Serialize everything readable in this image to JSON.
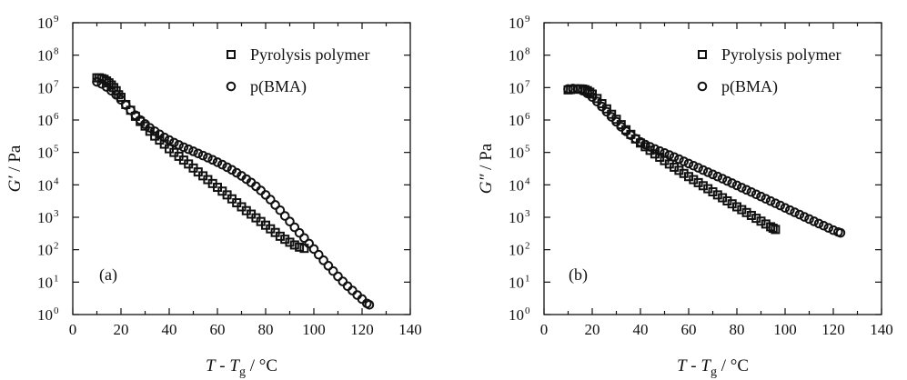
{
  "chart_data": [
    {
      "type": "scatter",
      "panel_label": "(a)",
      "xlabel": {
        "main": "T",
        "sep": " - ",
        "base": "T",
        "sub": "g",
        "unit": " / °C"
      },
      "ylabel": {
        "main": "G′",
        "unit": " / Pa"
      },
      "xlim": [
        0,
        140
      ],
      "ylim_exponent": [
        0,
        9
      ],
      "y_scale": "log",
      "x_ticks": [
        "0",
        "20",
        "40",
        "60",
        "80",
        "100",
        "120",
        "140"
      ],
      "y_tick_base": "10",
      "y_tick_exponents": [
        "0",
        "1",
        "2",
        "3",
        "4",
        "5",
        "6",
        "7",
        "8",
        "9"
      ],
      "legend_position": "top-right",
      "series": [
        {
          "name": "Pyrolysis polymer",
          "marker": "square",
          "x": [
            10,
            11,
            12,
            13,
            14,
            15,
            16,
            17,
            18,
            19,
            20,
            22,
            24,
            26,
            28,
            30,
            32,
            34,
            36,
            38,
            40,
            42,
            44,
            46,
            48,
            50,
            52,
            54,
            56,
            58,
            60,
            62,
            64,
            66,
            68,
            70,
            72,
            74,
            76,
            78,
            80,
            82,
            84,
            86,
            88,
            90,
            92,
            94,
            96
          ],
          "y": [
            20000000.0,
            20000000.0,
            19000000.0,
            18000000.0,
            16000000.0,
            14000000.0,
            12000000.0,
            10000000.0,
            8000000.0,
            6000000.0,
            5000000.0,
            3000000.0,
            2000000.0,
            1300000.0,
            900000.0,
            650000.0,
            450000.0,
            320000.0,
            240000.0,
            180000.0,
            130000.0,
            100000.0,
            76000.0,
            58000.0,
            44000.0,
            33000.0,
            25000.0,
            19000.0,
            14500.0,
            11000.0,
            8400.0,
            6400.0,
            4900.0,
            3700.0,
            2800.0,
            2100.0,
            1600.0,
            1250.0,
            960.0,
            740.0,
            570.0,
            440.0,
            340.0,
            260.0,
            210.0,
            170.0,
            140.0,
            120.0,
            110.0
          ]
        },
        {
          "name": "p(BMA)",
          "marker": "circle",
          "x": [
            10,
            12,
            14,
            16,
            18,
            20,
            22,
            24,
            26,
            28,
            30,
            32,
            34,
            36,
            38,
            40,
            42,
            44,
            46,
            48,
            50,
            52,
            54,
            56,
            58,
            60,
            62,
            64,
            66,
            68,
            70,
            72,
            74,
            76,
            78,
            80,
            82,
            84,
            86,
            88,
            90,
            92,
            94,
            96,
            98,
            100,
            102,
            104,
            106,
            108,
            110,
            112,
            114,
            116,
            118,
            120,
            122,
            123
          ],
          "y": [
            15000000.0,
            13000000.0,
            10500000.0,
            8000000.0,
            6000000.0,
            4200000.0,
            2900000.0,
            2000000.0,
            1400000.0,
            1000000.0,
            750000.0,
            570000.0,
            450000.0,
            360000.0,
            290000.0,
            240000.0,
            200000.0,
            170000.0,
            145000.0,
            125000.0,
            108000.0,
            93000.0,
            80000.0,
            69000.0,
            59000.0,
            50000.0,
            42000.0,
            35000.0,
            29000.0,
            23500.0,
            19000.0,
            15000.0,
            11800.0,
            9000.0,
            6700.0,
            4900.0,
            3500.0,
            2400.0,
            1650.0,
            1100.0,
            740.0,
            490.0,
            330.0,
            230.0,
            155.0,
            105.0,
            70.0,
            47.0,
            32.0,
            22.0,
            15.0,
            10.5,
            7.5,
            5.5,
            4.0,
            3.0,
            2.2,
            2.0
          ]
        }
      ]
    },
    {
      "type": "scatter",
      "panel_label": "(b)",
      "xlabel": {
        "main": "T",
        "sep": " - ",
        "base": "T",
        "sub": "g",
        "unit": " / °C"
      },
      "ylabel": {
        "main": "G″",
        "unit": " / Pa"
      },
      "xlim": [
        0,
        140
      ],
      "ylim_exponent": [
        0,
        9
      ],
      "y_scale": "log",
      "x_ticks": [
        "0",
        "20",
        "40",
        "60",
        "80",
        "100",
        "120",
        "140"
      ],
      "y_tick_base": "10",
      "y_tick_exponents": [
        "0",
        "1",
        "2",
        "3",
        "4",
        "5",
        "6",
        "7",
        "8",
        "9"
      ],
      "legend_position": "top-right",
      "series": [
        {
          "name": "Pyrolysis polymer",
          "marker": "square",
          "x": [
            10,
            11,
            12,
            13,
            14,
            15,
            16,
            17,
            18,
            19,
            20,
            22,
            24,
            26,
            28,
            30,
            32,
            34,
            36,
            38,
            40,
            42,
            44,
            46,
            48,
            50,
            52,
            54,
            56,
            58,
            60,
            62,
            64,
            66,
            68,
            70,
            72,
            74,
            76,
            78,
            80,
            82,
            84,
            86,
            88,
            90,
            92,
            94,
            95,
            96
          ],
          "y": [
            8500000.0,
            8700000.0,
            8900000.0,
            9000000.0,
            9100000.0,
            9100000.0,
            9000000.0,
            8600000.0,
            8000000.0,
            7200000.0,
            6300000.0,
            4600000.0,
            3200000.0,
            2200000.0,
            1500000.0,
            1050000.0,
            720000.0,
            500000.0,
            360000.0,
            260000.0,
            195000.0,
            150000.0,
            116000.0,
            90000.0,
            71000.0,
            56000.0,
            44000.0,
            35000.0,
            28000.0,
            22500.0,
            18000.0,
            14500.0,
            11700.0,
            9400.0,
            7600.0,
            6100.0,
            4900.0,
            4000.0,
            3200.0,
            2600.0,
            2100.0,
            1720.0,
            1400.0,
            1140.0,
            930.0,
            760.0,
            620.0,
            510.0,
            460.0,
            420.0
          ]
        },
        {
          "name": "p(BMA)",
          "marker": "circle",
          "x": [
            10,
            12,
            14,
            16,
            18,
            20,
            22,
            24,
            26,
            28,
            30,
            32,
            34,
            36,
            38,
            40,
            42,
            44,
            46,
            48,
            50,
            52,
            54,
            56,
            58,
            60,
            62,
            64,
            66,
            68,
            70,
            72,
            74,
            76,
            78,
            80,
            82,
            84,
            86,
            88,
            90,
            92,
            94,
            96,
            98,
            100,
            102,
            104,
            106,
            108,
            110,
            112,
            114,
            116,
            118,
            120,
            122,
            123
          ],
          "y": [
            9000000.0,
            9300000.0,
            9000000.0,
            8000000.0,
            6600000.0,
            5100000.0,
            3700000.0,
            2600000.0,
            1800000.0,
            1250000.0,
            880000.0,
            620000.0,
            450000.0,
            340000.0,
            265000.0,
            210000.0,
            175000.0,
            148000.0,
            127000.0,
            110000.0,
            96000.0,
            83000.0,
            72000.0,
            62000.0,
            53000.0,
            45500.0,
            39000.0,
            33500.0,
            28500.0,
            24500.0,
            21000.0,
            18000.0,
            15500.0,
            13200.0,
            11300.0,
            9600.0,
            8200.0,
            7000.0,
            6000.0,
            5100.0,
            4350.0,
            3700.0,
            3150.0,
            2700.0,
            2300.0,
            1950.0,
            1660.0,
            1420.0,
            1210.0,
            1030.0,
            880.0,
            750.0,
            640.0,
            550.0,
            470.0,
            400.0,
            350.0,
            330.0
          ]
        }
      ]
    }
  ]
}
